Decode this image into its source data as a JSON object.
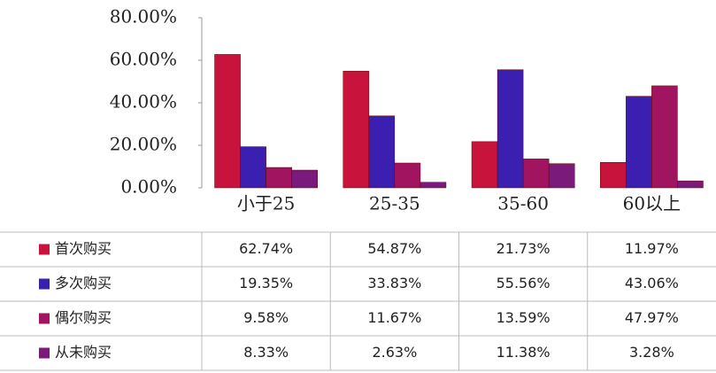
{
  "chart_data": {
    "type": "bar",
    "categories": [
      "小于25",
      "25-35",
      "35-60",
      "60以上"
    ],
    "series": [
      {
        "name": "首次购买",
        "color": "#c8143c",
        "values": [
          62.74,
          54.87,
          21.73,
          11.97
        ],
        "value_labels": [
          "62.74%",
          "54.87%",
          "21.73%",
          "11.97%"
        ]
      },
      {
        "name": "多次购买",
        "color": "#3a1fb0",
        "values": [
          19.35,
          33.83,
          55.56,
          43.06
        ],
        "value_labels": [
          "19.35%",
          "33.83%",
          "55.56%",
          "43.06%"
        ]
      },
      {
        "name": "偶尔购买",
        "color": "#a01460",
        "values": [
          9.58,
          11.67,
          13.59,
          47.97
        ],
        "value_labels": [
          "9.58%",
          "11.67%",
          "13.59%",
          "47.97%"
        ]
      },
      {
        "name": "从未购买",
        "color": "#7a1a7a",
        "values": [
          8.33,
          2.63,
          11.38,
          3.28
        ],
        "value_labels": [
          "8.33%",
          "2.63%",
          "11.38%",
          "3.28%"
        ]
      }
    ],
    "ylim": [
      0,
      80
    ],
    "yticks": [
      {
        "value": 0,
        "label": "0.00%"
      },
      {
        "value": 20,
        "label": "20.00%"
      },
      {
        "value": 40,
        "label": "40.00%"
      },
      {
        "value": 60,
        "label": "60.00%"
      },
      {
        "value": 80,
        "label": "80.00%"
      }
    ],
    "grid": false
  }
}
